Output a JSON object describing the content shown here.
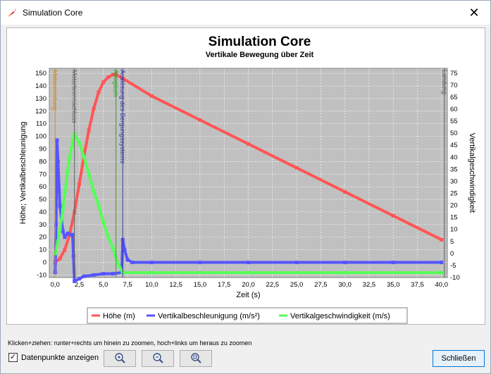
{
  "window": {
    "title": "Simulation Core",
    "close_glyph": "✕",
    "app_icon": "rocket-icon"
  },
  "chart_data": {
    "type": "line",
    "title": "Simulation Core",
    "subtitle": "Vertikale Bewegung über Zeit",
    "xlabel": "Zeit (s)",
    "ylabel_left": "Höhe; Vertikalbeschleunigung",
    "ylabel_right": "Vertikalgeschwindigkeit",
    "xlim": [
      -0.6,
      40.6
    ],
    "ylim_left": [
      -12,
      154
    ],
    "ylim_right": [
      -10,
      77
    ],
    "x_ticks": [
      "0,0",
      "2,5",
      "5,0",
      "7,5",
      "10,0",
      "12,5",
      "15,0",
      "17,5",
      "20,0",
      "22,5",
      "25,0",
      "27,5",
      "30,0",
      "32,5",
      "35,0",
      "37,5",
      "40,0"
    ],
    "x_tick_values": [
      0,
      2.5,
      5,
      7.5,
      10,
      12.5,
      15,
      17.5,
      20,
      22.5,
      25,
      27.5,
      30,
      32.5,
      35,
      37.5,
      40
    ],
    "y_left_ticks": [
      150,
      140,
      130,
      120,
      110,
      100,
      90,
      80,
      70,
      60,
      50,
      40,
      30,
      20,
      10,
      0,
      -10
    ],
    "y_right_ticks": [
      75,
      70,
      65,
      60,
      55,
      50,
      45,
      40,
      35,
      30,
      25,
      20,
      15,
      10,
      5,
      0,
      -5,
      -10
    ],
    "grid": true,
    "legend_position": "bottom",
    "series": [
      {
        "name": "Höhe (m)",
        "color": "#ff5555",
        "axis": "left",
        "x": [
          0,
          0.5,
          1,
          1.5,
          2,
          2.5,
          3,
          3.5,
          4,
          4.5,
          5,
          5.5,
          6,
          6.3,
          7,
          10,
          15,
          20,
          25,
          30,
          35,
          40
        ],
        "values": [
          0,
          3,
          10,
          22,
          40,
          62,
          85,
          105,
          122,
          135,
          143,
          147,
          149,
          149,
          146,
          132,
          113,
          94,
          75,
          56,
          37,
          18
        ]
      },
      {
        "name": "Vertikalbeschleunigung (m/s²)",
        "color": "#5555ff",
        "axis": "left",
        "x": [
          0,
          0.1,
          0.2,
          0.3,
          0.5,
          0.8,
          1,
          1.3,
          1.7,
          1.8,
          1.9,
          2,
          2.5,
          3,
          4,
          5,
          6,
          6.9,
          7,
          7.2,
          7.5,
          8,
          10,
          15,
          20,
          25,
          30,
          35,
          40
        ],
        "values": [
          -8,
          30,
          97,
          80,
          45,
          25,
          20,
          23,
          22,
          22,
          5,
          -15,
          -13,
          -11,
          -10,
          -9,
          -9,
          -8,
          18,
          10,
          2,
          0,
          0,
          0,
          0,
          0,
          0,
          0,
          0
        ]
      },
      {
        "name": "Vertikalgeschwindigkeit (m/s)",
        "color": "#55ff55",
        "axis": "right",
        "x": [
          0,
          0.3,
          0.5,
          0.8,
          1,
          1.3,
          1.5,
          1.8,
          2,
          2.5,
          3,
          3.5,
          4,
          4.5,
          5,
          5.5,
          6,
          6.5,
          7,
          10,
          20,
          30,
          40
        ],
        "values": [
          0,
          5,
          10,
          18,
          25,
          34,
          40,
          46,
          50,
          46,
          40,
          33,
          26,
          20,
          13,
          7,
          2,
          -4,
          -8,
          -8,
          -8,
          -8,
          -8
        ]
      }
    ],
    "events": [
      {
        "label": "Motorzündung",
        "x": 0,
        "color": "#d4882a"
      },
      {
        "label": "Motorbrennschluss",
        "x": 2,
        "color": "#606060"
      },
      {
        "label": "Apogäum",
        "x": 6.3,
        "color": "#2fa02f"
      },
      {
        "label": "Auslösung des Bergungssystems",
        "x": 7,
        "color": "#3a3aa0"
      },
      {
        "label": "Landung",
        "x": 40.3,
        "color": "#606060"
      }
    ]
  },
  "controls": {
    "hint": "Klicken+ziehen: runter+rechts um hinein zu zoomen, hoch+links um heraus zu zoomen",
    "checkbox_label": "Datenpunkte anzeigen",
    "checkbox_checked": true,
    "checkbox_glyph": "✓",
    "zoom_in_icon": "zoom-in-icon",
    "zoom_out_icon": "zoom-out-icon",
    "zoom_reset_icon": "zoom-reset-icon",
    "close_label": "Schließen"
  }
}
